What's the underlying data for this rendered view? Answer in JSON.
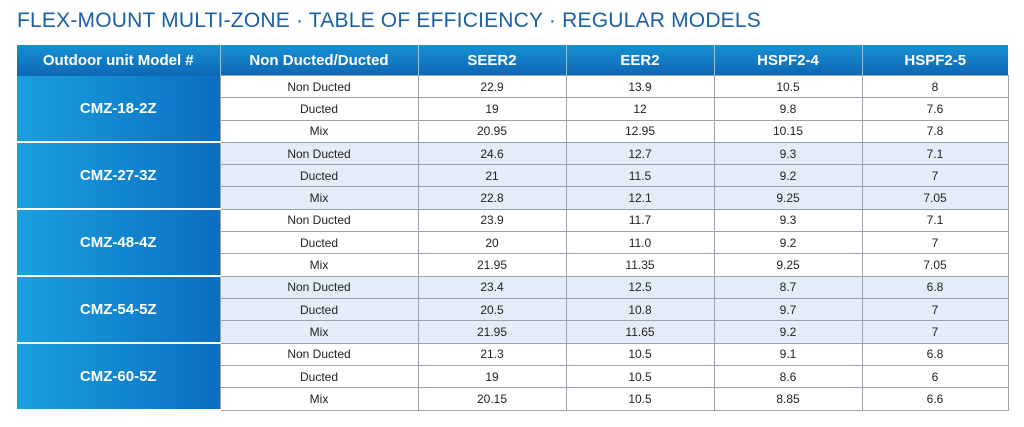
{
  "title": "FLEX-MOUNT MULTI-ZONE  ·  TABLE OF EFFICIENCY  ·  REGULAR MODELS",
  "headers": [
    "Outdoor unit Model #",
    "Non Ducted/Ducted",
    "SEER2",
    "EER2",
    "HSPF2-4",
    "HSPF2-5"
  ],
  "groups": [
    {
      "model": "CMZ-18-2Z",
      "rows": [
        {
          "type": "Non Ducted",
          "seer2": "22.9",
          "eer2": "13.9",
          "hspf2_4": "10.5",
          "hspf2_5": "8"
        },
        {
          "type": "Ducted",
          "seer2": "19",
          "eer2": "12",
          "hspf2_4": "9.8",
          "hspf2_5": "7.6"
        },
        {
          "type": "Mix",
          "seer2": "20.95",
          "eer2": "12.95",
          "hspf2_4": "10.15",
          "hspf2_5": "7.8"
        }
      ]
    },
    {
      "model": "CMZ-27-3Z",
      "rows": [
        {
          "type": "Non Ducted",
          "seer2": "24.6",
          "eer2": "12.7",
          "hspf2_4": "9.3",
          "hspf2_5": "7.1"
        },
        {
          "type": "Ducted",
          "seer2": "21",
          "eer2": "11.5",
          "hspf2_4": "9.2",
          "hspf2_5": "7"
        },
        {
          "type": "Mix",
          "seer2": "22.8",
          "eer2": "12.1",
          "hspf2_4": "9.25",
          "hspf2_5": "7.05"
        }
      ]
    },
    {
      "model": "CMZ-48-4Z",
      "rows": [
        {
          "type": "Non Ducted",
          "seer2": "23.9",
          "eer2": "11.7",
          "hspf2_4": "9.3",
          "hspf2_5": "7.1"
        },
        {
          "type": "Ducted",
          "seer2": "20",
          "eer2": "11.0",
          "hspf2_4": "9.2",
          "hspf2_5": "7"
        },
        {
          "type": "Mix",
          "seer2": "21.95",
          "eer2": "11.35",
          "hspf2_4": "9.25",
          "hspf2_5": "7.05"
        }
      ]
    },
    {
      "model": "CMZ-54-5Z",
      "rows": [
        {
          "type": "Non Ducted",
          "seer2": "23.4",
          "eer2": "12.5",
          "hspf2_4": "8.7",
          "hspf2_5": "6.8"
        },
        {
          "type": "Ducted",
          "seer2": "20.5",
          "eer2": "10.8",
          "hspf2_4": "9.7",
          "hspf2_5": "7"
        },
        {
          "type": "Mix",
          "seer2": "21.95",
          "eer2": "11.65",
          "hspf2_4": "9.2",
          "hspf2_5": "7"
        }
      ]
    },
    {
      "model": "CMZ-60-5Z",
      "rows": [
        {
          "type": "Non Ducted",
          "seer2": "21.3",
          "eer2": "10.5",
          "hspf2_4": "9.1",
          "hspf2_5": "6.8"
        },
        {
          "type": "Ducted",
          "seer2": "19",
          "eer2": "10.5",
          "hspf2_4": "8.6",
          "hspf2_5": "6"
        },
        {
          "type": "Mix",
          "seer2": "20.15",
          "eer2": "10.5",
          "hspf2_4": "8.85",
          "hspf2_5": "6.6"
        }
      ]
    }
  ],
  "colors": {
    "title": "#1a5fa8",
    "header_blue": "#0e67b4",
    "model_cell_blue": "#1aa0e0",
    "row_band": "#e4ecf8"
  }
}
